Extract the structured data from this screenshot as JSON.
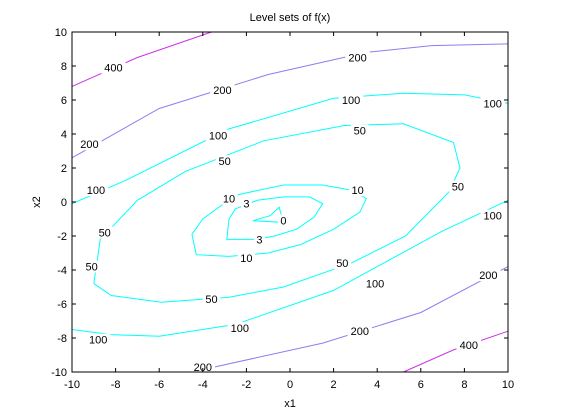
{
  "chart_data": {
    "type": "contour",
    "title": "Level sets of f(x)",
    "xlabel": "x1",
    "ylabel": "x2",
    "xlim": [
      -10,
      10
    ],
    "ylim": [
      -10,
      10
    ],
    "xticks": [
      -10,
      -8,
      -6,
      -4,
      -2,
      0,
      2,
      4,
      6,
      8,
      10
    ],
    "yticks": [
      -10,
      -8,
      -6,
      -4,
      -2,
      0,
      2,
      4,
      6,
      8,
      10
    ],
    "grid": false,
    "levels": [
      {
        "value": 0,
        "color": "#00ffff",
        "labels": [
          {
            "text": "0",
            "at": [
              -0.3,
              -1.1
            ]
          }
        ],
        "paths": [
          [
            [
              -1.7,
              -1.1
            ],
            [
              -0.9,
              -0.8
            ],
            [
              -0.5,
              -0.3
            ],
            [
              -0.3,
              -1.2
            ],
            [
              -1.7,
              -1.1
            ]
          ]
        ]
      },
      {
        "value": 3,
        "color": "#00ffff",
        "labels": [
          {
            "text": "3",
            "at": [
              -2.0,
              -0.1
            ]
          },
          {
            "text": "3",
            "at": [
              -1.4,
              -2.2
            ]
          }
        ],
        "paths": [
          [
            [
              -2.8,
              -1.0
            ],
            [
              -2.5,
              -0.4
            ],
            [
              -1.5,
              0.1
            ],
            [
              -0.3,
              0.3
            ],
            [
              0.9,
              0.3
            ],
            [
              1.5,
              -0.1
            ],
            [
              1.1,
              -0.9
            ],
            [
              0.3,
              -1.6
            ],
            [
              -0.7,
              -2.0
            ],
            [
              -1.6,
              -2.2
            ],
            [
              -2.9,
              -2.2
            ],
            [
              -2.8,
              -1.0
            ]
          ]
        ]
      },
      {
        "value": 10,
        "color": "#00ffff",
        "labels": [
          {
            "text": "10",
            "at": [
              -2.8,
              0.2
            ]
          },
          {
            "text": "10",
            "at": [
              3.1,
              0.7
            ]
          },
          {
            "text": "10",
            "at": [
              -2.0,
              -3.3
            ]
          }
        ],
        "paths": [
          [
            [
              -4.5,
              -1.9
            ],
            [
              -4.0,
              -1.0
            ],
            [
              -2.5,
              0.4
            ],
            [
              -0.3,
              1.0
            ],
            [
              1.5,
              1.0
            ],
            [
              2.8,
              0.7
            ],
            [
              3.5,
              0.2
            ],
            [
              3.2,
              -0.6
            ],
            [
              2.0,
              -1.6
            ],
            [
              0.5,
              -2.5
            ],
            [
              -1.0,
              -3.0
            ],
            [
              -2.8,
              -3.2
            ],
            [
              -4.3,
              -3.1
            ],
            [
              -4.5,
              -1.9
            ]
          ]
        ]
      },
      {
        "value": 50,
        "color": "#00ffff",
        "labels": [
          {
            "text": "50",
            "at": [
              -3.0,
              2.4
            ]
          },
          {
            "text": "50",
            "at": [
              3.2,
              4.2
            ]
          },
          {
            "text": "50",
            "at": [
              7.7,
              0.9
            ]
          },
          {
            "text": "50",
            "at": [
              2.4,
              -3.6
            ]
          },
          {
            "text": "50",
            "at": [
              -3.6,
              -5.7
            ]
          },
          {
            "text": "50",
            "at": [
              -8.5,
              -1.8
            ]
          },
          {
            "text": "50",
            "at": [
              -9.1,
              -3.8
            ]
          }
        ],
        "paths": [
          [
            [
              -9.0,
              -4.8
            ],
            [
              -8.7,
              -2.2
            ],
            [
              -7.0,
              0.1
            ],
            [
              -4.8,
              1.8
            ],
            [
              -1.2,
              3.6
            ],
            [
              2.5,
              4.5
            ],
            [
              5.2,
              4.6
            ],
            [
              7.5,
              3.5
            ],
            [
              7.8,
              2.0
            ],
            [
              7.3,
              0.6
            ],
            [
              5.3,
              -2.0
            ],
            [
              2.8,
              -3.6
            ],
            [
              -0.3,
              -5.0
            ],
            [
              -2.8,
              -5.6
            ],
            [
              -5.9,
              -5.9
            ],
            [
              -8.2,
              -5.5
            ],
            [
              -9.0,
              -4.8
            ]
          ]
        ]
      },
      {
        "value": 100,
        "color": "#00ffff",
        "labels": [
          {
            "text": "100",
            "at": [
              -8.9,
              0.7
            ]
          },
          {
            "text": "100",
            "at": [
              -3.3,
              3.9
            ]
          },
          {
            "text": "100",
            "at": [
              2.8,
              6.0
            ]
          },
          {
            "text": "100",
            "at": [
              9.3,
              5.8
            ]
          },
          {
            "text": "100",
            "at": [
              9.3,
              -0.8
            ]
          },
          {
            "text": "100",
            "at": [
              3.9,
              -4.8
            ]
          },
          {
            "text": "100",
            "at": [
              -2.3,
              -7.4
            ]
          },
          {
            "text": "100",
            "at": [
              -8.8,
              -8.1
            ]
          }
        ],
        "paths": [
          [
            [
              -10,
              -0.1
            ],
            [
              -7.5,
              1.3
            ],
            [
              -2.8,
              4.3
            ],
            [
              2.0,
              6.1
            ],
            [
              5.2,
              6.4
            ],
            [
              8.0,
              6.3
            ],
            [
              10,
              5.8
            ]
          ],
          [
            [
              10,
              0.1
            ],
            [
              7.0,
              -1.7
            ],
            [
              2.0,
              -5.2
            ],
            [
              -2.5,
              -7.2
            ],
            [
              -6.0,
              -7.9
            ],
            [
              -8.2,
              -7.8
            ],
            [
              -10,
              -7.5
            ]
          ]
        ]
      },
      {
        "value": 200,
        "color": "#8a7ff0",
        "labels": [
          {
            "text": "200",
            "at": [
              -9.2,
              3.4
            ]
          },
          {
            "text": "200",
            "at": [
              -3.1,
              6.6
            ]
          },
          {
            "text": "200",
            "at": [
              3.1,
              8.5
            ]
          },
          {
            "text": "200",
            "at": [
              9.1,
              -4.3
            ]
          },
          {
            "text": "200",
            "at": [
              3.2,
              -7.6
            ]
          },
          {
            "text": "200",
            "at": [
              -4.0,
              -9.7
            ]
          }
        ],
        "paths": [
          [
            [
              -10,
              2.6
            ],
            [
              -6.0,
              5.5
            ],
            [
              -1.0,
              7.5
            ],
            [
              3.5,
              8.8
            ],
            [
              6.5,
              9.2
            ],
            [
              10,
              9.3
            ]
          ],
          [
            [
              10,
              -3.8
            ],
            [
              6.0,
              -6.5
            ],
            [
              1.5,
              -8.3
            ],
            [
              -4.5,
              -10
            ]
          ]
        ]
      },
      {
        "value": 400,
        "color": "#cc33e6",
        "labels": [
          {
            "text": "400",
            "at": [
              -8.1,
              7.9
            ]
          },
          {
            "text": "400",
            "at": [
              8.2,
              -8.4
            ]
          }
        ],
        "paths": [
          [
            [
              -10,
              6.8
            ],
            [
              -7.0,
              8.5
            ],
            [
              -3.6,
              10
            ]
          ],
          [
            [
              5.2,
              -10
            ],
            [
              7.5,
              -8.7
            ],
            [
              10,
              -7.6
            ]
          ]
        ]
      }
    ]
  }
}
